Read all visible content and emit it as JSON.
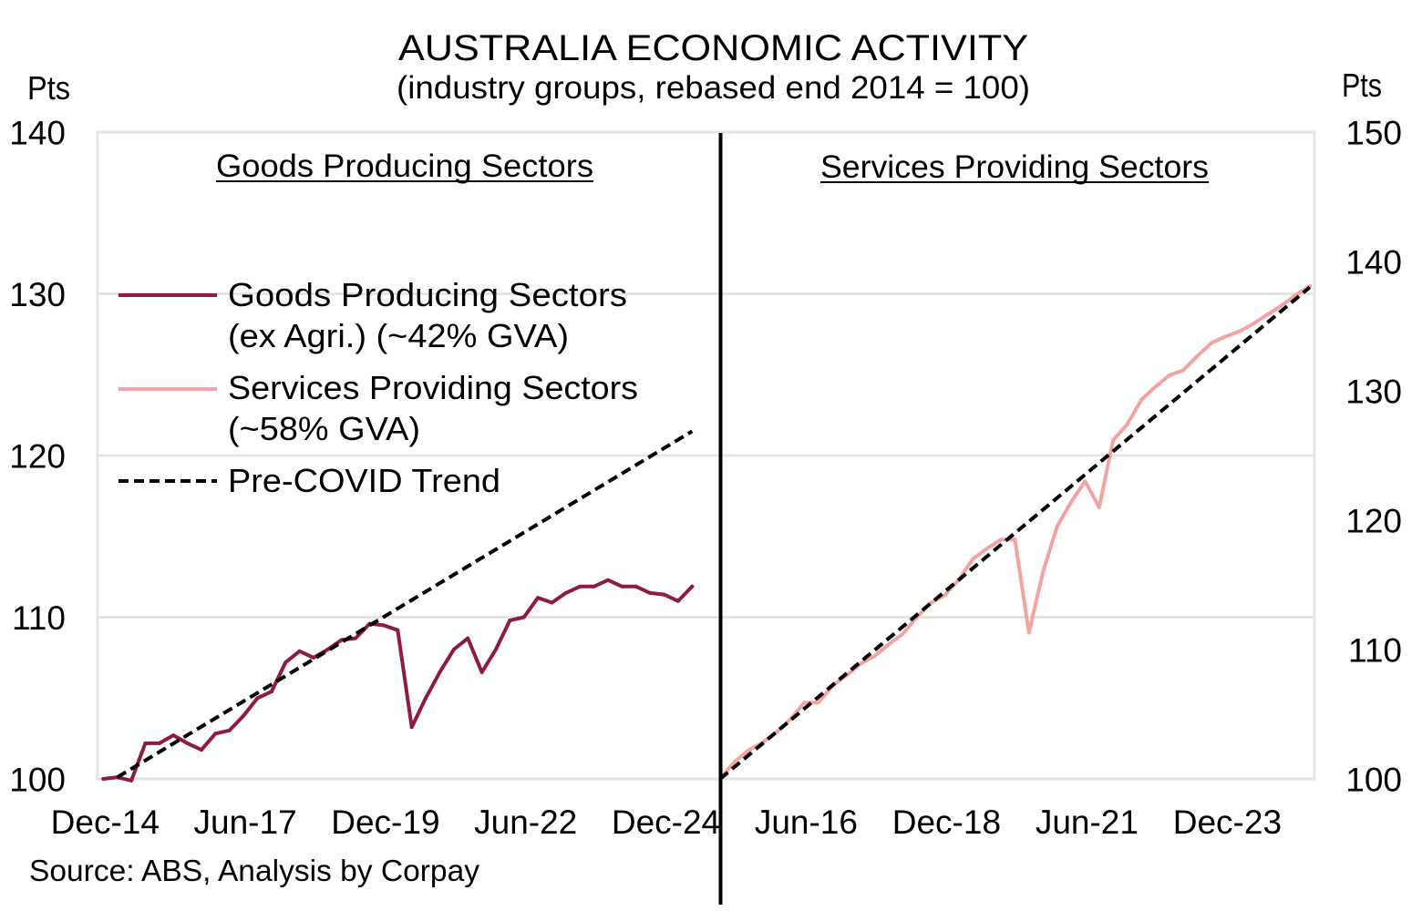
{
  "chart_data": {
    "type": "line",
    "title": "AUSTRALIA ECONOMIC ACTIVITY",
    "subtitle": "(industry groups, rebased end 2014 = 100)",
    "source": "Source: ABS, Analysis by Corpay",
    "title_color": "#9a1a3e",
    "grid": true,
    "x": [
      "Dec-14",
      "Mar-15",
      "Jun-15",
      "Sep-15",
      "Dec-15",
      "Mar-16",
      "Jun-16",
      "Sep-16",
      "Dec-16",
      "Mar-17",
      "Jun-17",
      "Sep-17",
      "Dec-17",
      "Mar-18",
      "Jun-18",
      "Sep-18",
      "Dec-18",
      "Mar-19",
      "Jun-19",
      "Sep-19",
      "Dec-19",
      "Mar-20",
      "Jun-20",
      "Sep-20",
      "Dec-20",
      "Mar-21",
      "Jun-21",
      "Sep-21",
      "Dec-21",
      "Mar-22",
      "Jun-22",
      "Sep-22",
      "Dec-22",
      "Mar-23",
      "Jun-23",
      "Sep-23",
      "Dec-23",
      "Mar-24",
      "Jun-24",
      "Sep-24",
      "Dec-24",
      "Mar-25",
      "Jun-25"
    ],
    "panels": [
      {
        "title": "Goods Producing Sectors",
        "ylabel": "Pts",
        "y_axis_side": "left",
        "ylim": [
          100,
          140
        ],
        "yticks": [
          100,
          110,
          120,
          130,
          140
        ],
        "xticks": [
          "Dec-14",
          "Jun-17",
          "Dec-19",
          "Jun-22",
          "Dec-24"
        ],
        "series": {
          "name": "Goods Producing Sectors (ex Agri.) (~42% GVA)",
          "color": "#8e1b40",
          "style": "solid",
          "values": [
            100.0,
            100.1,
            99.9,
            102.2,
            102.2,
            102.7,
            102.2,
            101.8,
            102.8,
            103.0,
            103.9,
            105.0,
            105.4,
            107.2,
            107.9,
            107.5,
            108.0,
            108.6,
            108.7,
            109.6,
            109.5,
            109.2,
            103.2,
            105.0,
            106.6,
            108.0,
            108.7,
            106.6,
            108.0,
            109.8,
            110.0,
            111.2,
            110.9,
            111.5,
            111.9,
            111.9,
            112.3,
            111.9,
            111.9,
            111.5,
            111.4,
            111.0,
            111.9
          ]
        },
        "trend": {
          "name": "Pre-COVID Trend",
          "color": "#000000",
          "style": "dashed",
          "start": {
            "x": "Mar-15",
            "y": 100.1
          },
          "end": {
            "x": "Jun-25",
            "y": 121.5
          }
        }
      },
      {
        "title": "Services Providing Sectors",
        "ylabel": "Pts",
        "y_axis_side": "right",
        "ylim": [
          100,
          150
        ],
        "yticks": [
          100,
          110,
          120,
          130,
          140,
          150
        ],
        "xticks": [
          "Jun-16",
          "Dec-18",
          "Jun-21",
          "Dec-23"
        ],
        "series": {
          "name": "Services Providing Sectors (~58% GVA)",
          "color": "#f4a3a3",
          "style": "solid",
          "values": [
            100.0,
            101.3,
            102.2,
            102.8,
            103.6,
            104.6,
            105.9,
            105.9,
            107.2,
            108.0,
            108.9,
            109.5,
            110.4,
            111.2,
            112.5,
            113.6,
            114.2,
            115.4,
            117.0,
            117.8,
            118.5,
            118.5,
            111.3,
            116.0,
            119.5,
            121.4,
            123.0,
            121.0,
            126.2,
            127.4,
            129.3,
            130.3,
            131.2,
            131.6,
            132.7,
            133.7,
            134.2,
            134.6,
            135.2,
            135.9,
            136.6,
            137.4,
            138.1
          ]
        },
        "trend": {
          "name": "Pre-COVID Trend",
          "color": "#000000",
          "style": "dashed",
          "start": {
            "x": "Dec-14",
            "y": 100.0
          },
          "end": {
            "x": "Jun-25",
            "y": 138.0
          }
        }
      }
    ],
    "legend": {
      "position": "upper-left",
      "entries": [
        {
          "lines": [
            "Goods Producing Sectors",
            "(ex Agri.) (~42% GVA)"
          ],
          "color": "#8e1b40",
          "style": "solid"
        },
        {
          "lines": [
            "Services Providing Sectors",
            "(~58% GVA)"
          ],
          "color": "#f4a3a3",
          "style": "solid"
        },
        {
          "lines": [
            "Pre-COVID Trend"
          ],
          "color": "#000000",
          "style": "dashed"
        }
      ]
    }
  }
}
